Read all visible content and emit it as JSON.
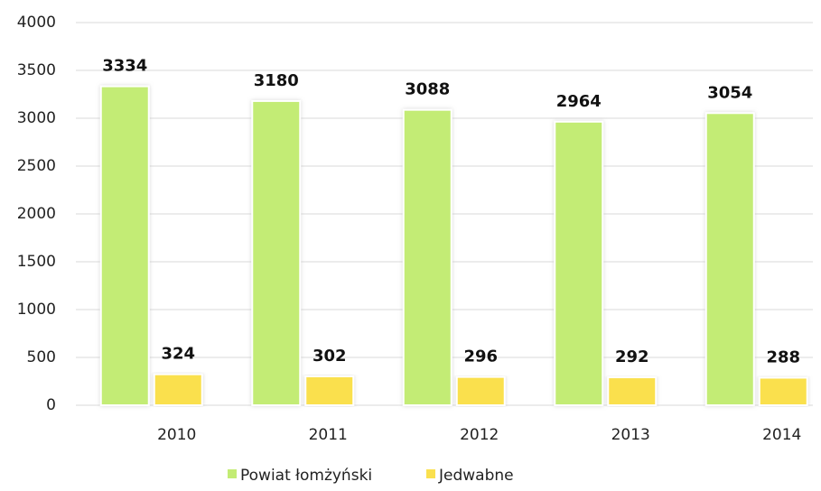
{
  "chart_data": {
    "type": "bar",
    "categories": [
      "2010",
      "2011",
      "2012",
      "2013",
      "2014"
    ],
    "series": [
      {
        "name": "Powiat łomżyński",
        "color": "#c3ec74",
        "values": [
          3334,
          3180,
          3088,
          2964,
          3054
        ]
      },
      {
        "name": "Jedwabne",
        "color": "#fae04e",
        "values": [
          324,
          302,
          296,
          292,
          288
        ]
      }
    ],
    "ylim": [
      0,
      4000
    ],
    "yticks": [
      0,
      500,
      1000,
      1500,
      2000,
      2500,
      3000,
      3500,
      4000
    ],
    "grid": true,
    "legend": "bottom"
  }
}
